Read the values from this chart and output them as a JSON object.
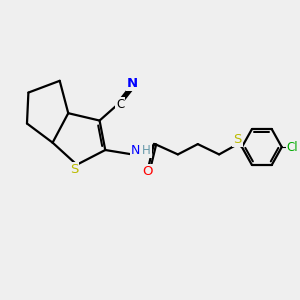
{
  "bg_color": "#efefef",
  "bond_color": "#000000",
  "S_color": "#bbbb00",
  "N_color": "#0000ff",
  "O_color": "#ff0000",
  "Cl_color": "#00aa00",
  "H_color": "#6699aa",
  "C_color": "#000000",
  "line_width": 1.6,
  "figsize": [
    3.0,
    3.0
  ],
  "dpi": 100,
  "xlim": [
    0,
    10
  ],
  "ylim": [
    0,
    10
  ]
}
